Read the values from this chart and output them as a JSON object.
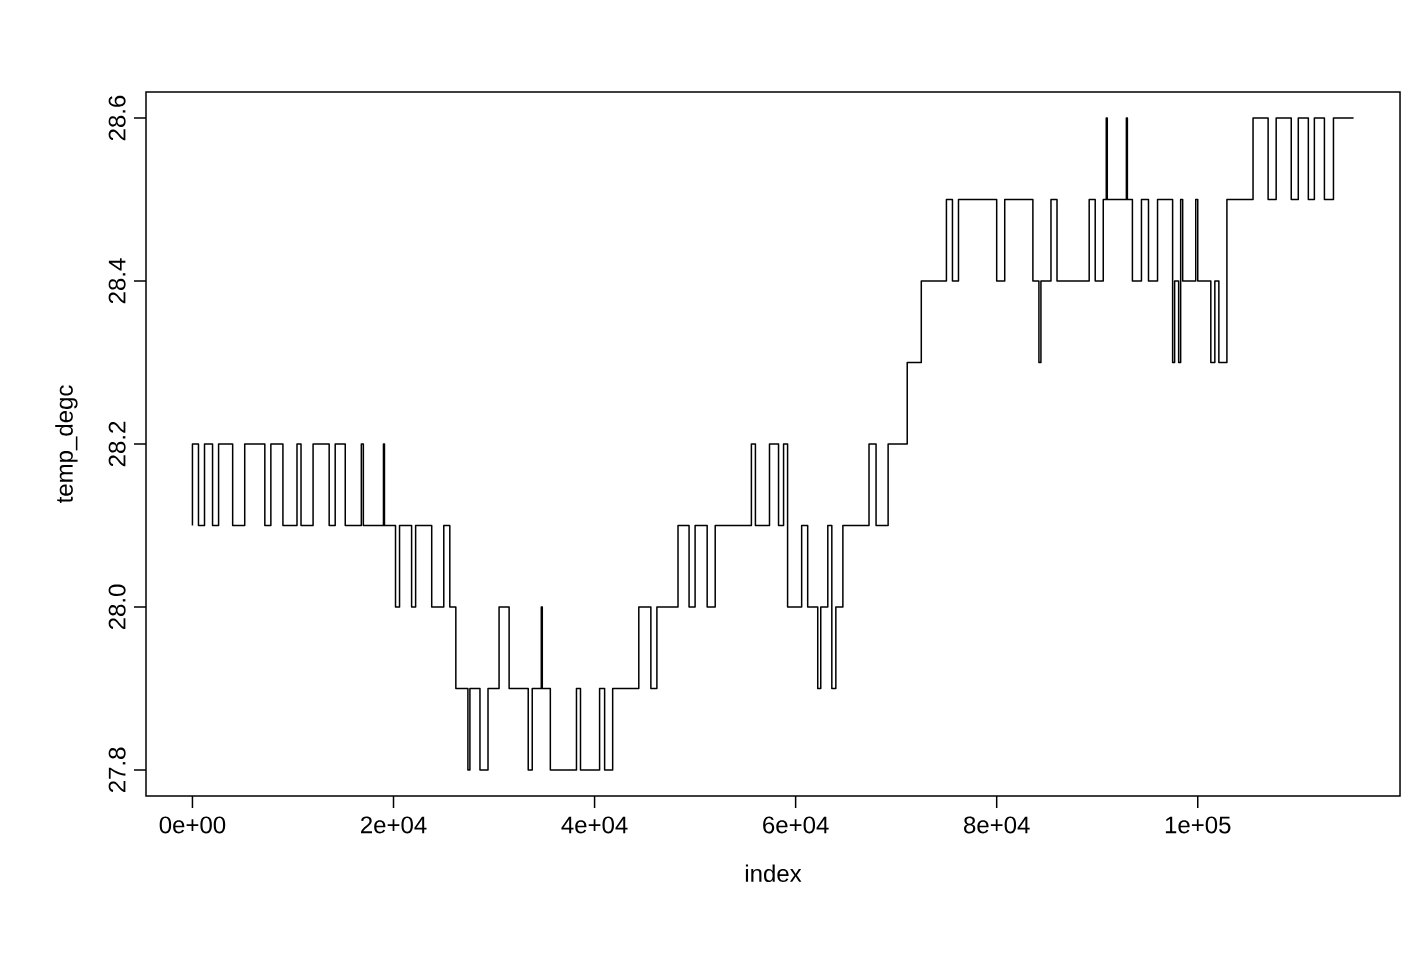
{
  "chart_data": {
    "type": "line",
    "xlabel": "index",
    "ylabel": "temp_degc",
    "xlim": [
      -4620,
      120120
    ],
    "ylim": [
      27.768,
      28.632
    ],
    "xticks": [
      {
        "value": 0,
        "label": "0e+00"
      },
      {
        "value": 20000,
        "label": "2e+04"
      },
      {
        "value": 40000,
        "label": "4e+04"
      },
      {
        "value": 60000,
        "label": "6e+04"
      },
      {
        "value": 80000,
        "label": "8e+04"
      },
      {
        "value": 100000,
        "label": "1e+05"
      }
    ],
    "yticks": [
      {
        "value": 27.8,
        "label": "27.8"
      },
      {
        "value": 28.0,
        "label": "28.0"
      },
      {
        "value": 28.2,
        "label": "28.2"
      },
      {
        "value": 28.4,
        "label": "28.4"
      },
      {
        "value": 28.6,
        "label": "28.6"
      }
    ],
    "grid": false,
    "marker": "none",
    "line_style": "solid",
    "series": [
      {
        "color": "#000000",
        "x": [
          0,
          0,
          600,
          600,
          1200,
          1200,
          2000,
          2000,
          2600,
          2600,
          4000,
          4000,
          5200,
          5200,
          7200,
          7200,
          7800,
          7800,
          9000,
          9000,
          10400,
          10400,
          10800,
          10800,
          12000,
          12000,
          13600,
          13600,
          14200,
          14200,
          15200,
          15200,
          16800,
          16800,
          17000,
          17000,
          19000,
          19000,
          19100,
          19100,
          20200,
          20200,
          20600,
          20600,
          21800,
          21800,
          22200,
          22200,
          23800,
          23800,
          25000,
          25000,
          25600,
          25600,
          26200,
          26200,
          27400,
          27400,
          27600,
          27600,
          28600,
          28600,
          29400,
          29400,
          30500,
          30500,
          31500,
          31500,
          33400,
          33400,
          33800,
          33800,
          34700,
          34700,
          34800,
          34800,
          35600,
          35600,
          38200,
          38200,
          38600,
          38600,
          40500,
          40500,
          41000,
          41000,
          41800,
          41800,
          44400,
          44400,
          45600,
          45600,
          46200,
          46200,
          47500,
          47500,
          48300,
          48300,
          49400,
          49400,
          50000,
          50000,
          51200,
          51200,
          52000,
          52000,
          55600,
          55600,
          56000,
          56000,
          57400,
          57400,
          58300,
          58300,
          58800,
          58800,
          59200,
          59200,
          60600,
          60600,
          61200,
          61200,
          62200,
          62200,
          62500,
          62500,
          63200,
          63200,
          63600,
          63600,
          64000,
          64000,
          64700,
          64700,
          67300,
          67300,
          68000,
          68000,
          69200,
          69200,
          71100,
          71100,
          72500,
          72500,
          75000,
          75000,
          75600,
          75600,
          76200,
          76200,
          80000,
          80000,
          80800,
          80800,
          83600,
          83600,
          84200,
          84200,
          84400,
          84400,
          85400,
          85400,
          86000,
          86000,
          89200,
          89200,
          89800,
          89800,
          90600,
          90600,
          90900,
          90900,
          91000,
          91000,
          92900,
          92900,
          93000,
          93000,
          93500,
          93500,
          94400,
          94400,
          95100,
          95100,
          96000,
          96000,
          97500,
          97500,
          97700,
          97700,
          98100,
          98100,
          98300,
          98300,
          98500,
          98500,
          99800,
          99800,
          100000,
          100000,
          101300,
          101300,
          101700,
          101700,
          102100,
          102100,
          102900,
          102900,
          105500,
          105500,
          107000,
          107000,
          107800,
          107800,
          109300,
          109300,
          110000,
          110000,
          111000,
          111000,
          111600,
          111600,
          112600,
          112600,
          113500,
          113500,
          115500
        ],
        "values": [
          28.1,
          28.2,
          28.2,
          28.1,
          28.1,
          28.2,
          28.2,
          28.1,
          28.1,
          28.2,
          28.2,
          28.1,
          28.1,
          28.2,
          28.2,
          28.1,
          28.1,
          28.2,
          28.2,
          28.1,
          28.1,
          28.2,
          28.2,
          28.1,
          28.1,
          28.2,
          28.2,
          28.1,
          28.1,
          28.2,
          28.2,
          28.1,
          28.1,
          28.2,
          28.2,
          28.1,
          28.1,
          28.2,
          28.2,
          28.1,
          28.1,
          28.0,
          28.0,
          28.1,
          28.1,
          28.0,
          28.0,
          28.1,
          28.1,
          28.0,
          28.0,
          28.1,
          28.1,
          28.0,
          28.0,
          27.9,
          27.9,
          27.8,
          27.8,
          27.9,
          27.9,
          27.8,
          27.8,
          27.9,
          27.9,
          28.0,
          28.0,
          27.9,
          27.9,
          27.8,
          27.8,
          27.9,
          27.9,
          28.0,
          28.0,
          27.9,
          27.9,
          27.8,
          27.8,
          27.9,
          27.9,
          27.8,
          27.8,
          27.9,
          27.9,
          27.8,
          27.8,
          27.9,
          27.9,
          28.0,
          28.0,
          27.9,
          27.9,
          28.0,
          28.0,
          28.0,
          28.0,
          28.1,
          28.1,
          28.0,
          28.0,
          28.1,
          28.1,
          28.0,
          28.0,
          28.1,
          28.1,
          28.2,
          28.2,
          28.1,
          28.1,
          28.2,
          28.2,
          28.1,
          28.1,
          28.2,
          28.2,
          28.0,
          28.0,
          28.1,
          28.1,
          28.0,
          28.0,
          27.9,
          27.9,
          28.0,
          28.0,
          28.1,
          28.1,
          27.9,
          27.9,
          28.0,
          28.0,
          28.1,
          28.1,
          28.2,
          28.2,
          28.1,
          28.1,
          28.2,
          28.2,
          28.3,
          28.3,
          28.4,
          28.4,
          28.5,
          28.5,
          28.4,
          28.4,
          28.5,
          28.5,
          28.4,
          28.4,
          28.5,
          28.5,
          28.4,
          28.4,
          28.3,
          28.3,
          28.4,
          28.4,
          28.5,
          28.5,
          28.4,
          28.4,
          28.5,
          28.5,
          28.4,
          28.4,
          28.5,
          28.5,
          28.6,
          28.6,
          28.5,
          28.5,
          28.6,
          28.6,
          28.5,
          28.5,
          28.4,
          28.4,
          28.5,
          28.5,
          28.4,
          28.4,
          28.5,
          28.5,
          28.3,
          28.3,
          28.4,
          28.4,
          28.3,
          28.3,
          28.5,
          28.5,
          28.4,
          28.4,
          28.5,
          28.5,
          28.4,
          28.4,
          28.3,
          28.3,
          28.4,
          28.4,
          28.3,
          28.3,
          28.5,
          28.5,
          28.6,
          28.6,
          28.5,
          28.5,
          28.6,
          28.6,
          28.5,
          28.5,
          28.6,
          28.6,
          28.5,
          28.5,
          28.6,
          28.6,
          28.5,
          28.5,
          28.6,
          28.6
        ]
      }
    ]
  }
}
